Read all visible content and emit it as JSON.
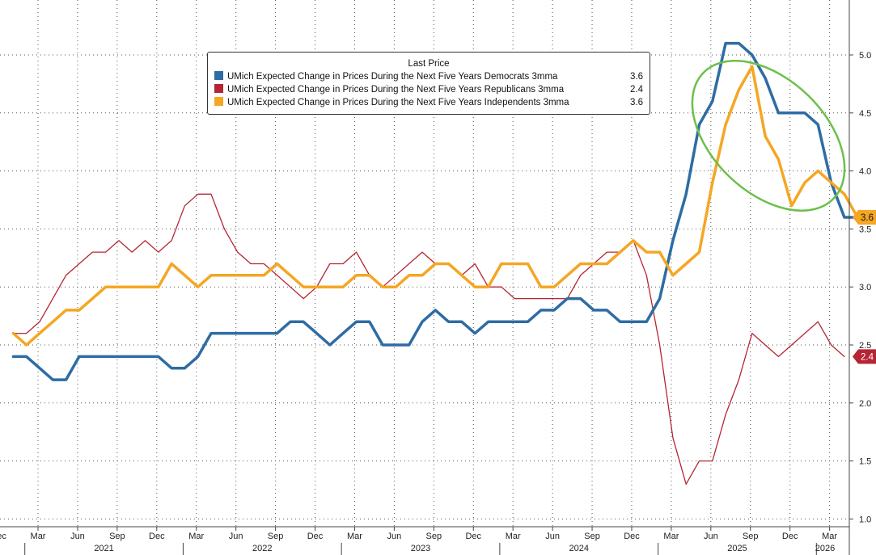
{
  "chart_data": {
    "type": "line",
    "x_start_label": "Dec 2020",
    "x_step": "month",
    "x_labels_month": [
      "Dec",
      "Mar",
      "Jun",
      "Sep",
      "Dec",
      "Mar",
      "Jun",
      "Sep",
      "Dec",
      "Mar",
      "Jun",
      "Sep",
      "Dec",
      "Mar",
      "Jun",
      "Sep",
      "Dec",
      "Mar",
      "Jun",
      "Sep",
      "Dec",
      "Mar"
    ],
    "x_labels_year": [
      "2021",
      "2022",
      "2023",
      "2024",
      "2025",
      "2026"
    ],
    "ylim": [
      0.9,
      5.4
    ],
    "yticks": [
      "1.0",
      "1.5",
      "2.0",
      "2.5",
      "3.0",
      "3.5",
      "4.0",
      "4.5",
      "5.0"
    ],
    "grid": true,
    "legend_title": "Last Price",
    "legend_position": "top-center",
    "series": [
      {
        "name": "UMich Expected Change in Prices During the Next Five Years Democrats 3mma",
        "last": "3.6",
        "color": "#2e6ca4",
        "values": [
          2.4,
          2.4,
          2.3,
          2.2,
          2.2,
          2.4,
          2.4,
          2.4,
          2.4,
          2.4,
          2.4,
          2.4,
          2.3,
          2.3,
          2.4,
          2.6,
          2.6,
          2.6,
          2.6,
          2.6,
          2.6,
          2.7,
          2.7,
          2.6,
          2.5,
          2.6,
          2.7,
          2.7,
          2.5,
          2.5,
          2.5,
          2.7,
          2.8,
          2.7,
          2.7,
          2.6,
          2.7,
          2.7,
          2.7,
          2.7,
          2.8,
          2.8,
          2.9,
          2.9,
          2.8,
          2.8,
          2.7,
          2.7,
          2.7,
          2.9,
          3.4,
          3.8,
          4.4,
          4.6,
          5.1,
          5.1,
          5.0,
          4.8,
          4.5,
          4.5,
          4.5,
          4.4,
          3.9,
          3.6,
          3.6
        ]
      },
      {
        "name": "UMich Expected Change in Prices During the Next Five Years Republicans 3mma",
        "last": "2.4",
        "color": "#b52534",
        "values": [
          2.6,
          2.6,
          2.7,
          2.9,
          3.1,
          3.2,
          3.3,
          3.3,
          3.4,
          3.3,
          3.4,
          3.3,
          3.4,
          3.7,
          3.8,
          3.8,
          3.5,
          3.3,
          3.2,
          3.2,
          3.1,
          3.0,
          2.9,
          3.0,
          3.2,
          3.2,
          3.3,
          3.1,
          3.0,
          3.1,
          3.2,
          3.3,
          3.2,
          3.2,
          3.1,
          3.2,
          3.0,
          3.0,
          2.9,
          2.9,
          2.9,
          2.9,
          2.9,
          3.1,
          3.2,
          3.3,
          3.3,
          3.4,
          3.1,
          2.5,
          1.7,
          1.3,
          1.5,
          1.5,
          1.9,
          2.2,
          2.6,
          2.5,
          2.4,
          2.5,
          2.6,
          2.7,
          2.5,
          2.4
        ]
      },
      {
        "name": "UMich Expected Change in Prices During the Next Five Years Independents 3mma",
        "last": "3.6",
        "color": "#f5a623",
        "values": [
          2.6,
          2.5,
          2.6,
          2.7,
          2.8,
          2.8,
          2.9,
          3.0,
          3.0,
          3.0,
          3.0,
          3.0,
          3.2,
          3.1,
          3.0,
          3.1,
          3.1,
          3.1,
          3.1,
          3.1,
          3.2,
          3.1,
          3.0,
          3.0,
          3.0,
          3.0,
          3.1,
          3.1,
          3.0,
          3.0,
          3.1,
          3.1,
          3.2,
          3.2,
          3.1,
          3.0,
          3.0,
          3.2,
          3.2,
          3.2,
          3.0,
          3.0,
          3.1,
          3.2,
          3.2,
          3.2,
          3.3,
          3.4,
          3.3,
          3.3,
          3.1,
          3.2,
          3.3,
          3.9,
          4.4,
          4.7,
          4.9,
          4.3,
          4.1,
          3.7,
          3.9,
          4.0,
          3.9,
          3.8,
          3.6
        ]
      }
    ],
    "annotation": {
      "shape": "ellipse",
      "color": "#6cc04a"
    }
  }
}
